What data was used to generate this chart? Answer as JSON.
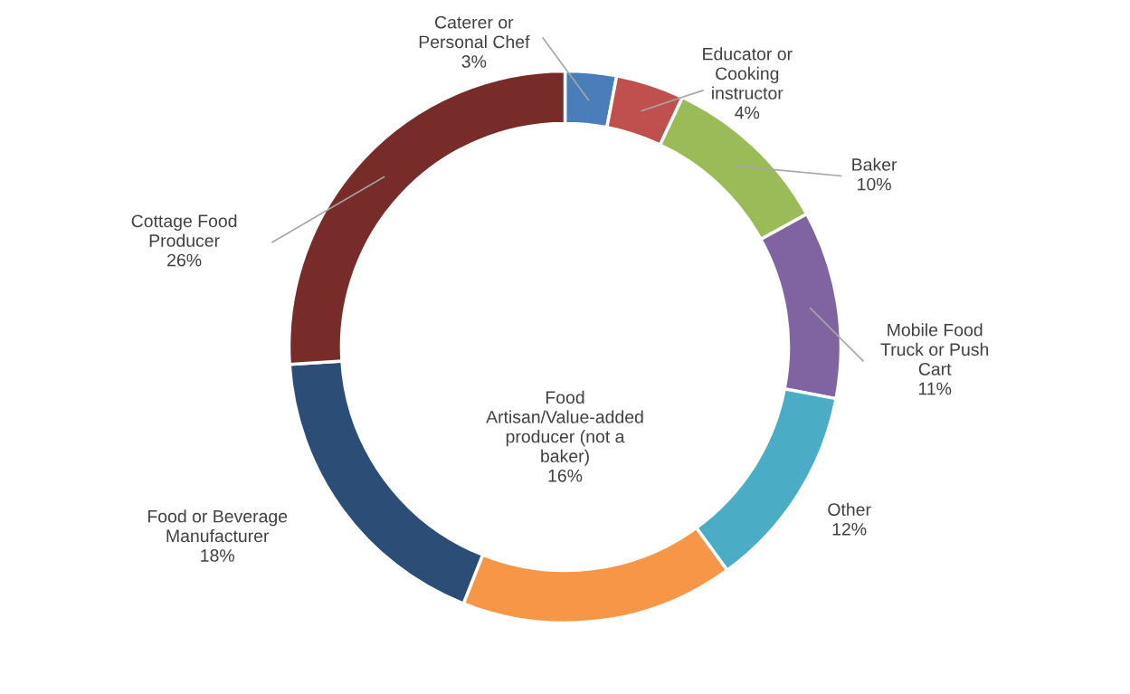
{
  "chart_data": {
    "type": "donut",
    "categories": [
      "Caterer or Personal Chef",
      "Educator or Cooking instructor",
      "Baker",
      "Mobile Food Truck or Push Cart",
      "Other",
      "Food Artisan/Value-added producer (not a baker)",
      "Food or Beverage Manufacturer",
      "Cottage Food Producer"
    ],
    "values": [
      3,
      4,
      10,
      11,
      12,
      16,
      18,
      26
    ],
    "colors": [
      "#4a7ebb",
      "#c0504d",
      "#9bbb59",
      "#8064a2",
      "#4bacc6",
      "#f79646",
      "#2c4d75",
      "#772c2a"
    ],
    "value_labels": [
      "3%",
      "4%",
      "10%",
      "11%",
      "12%",
      "16%",
      "18%",
      "26%"
    ]
  }
}
